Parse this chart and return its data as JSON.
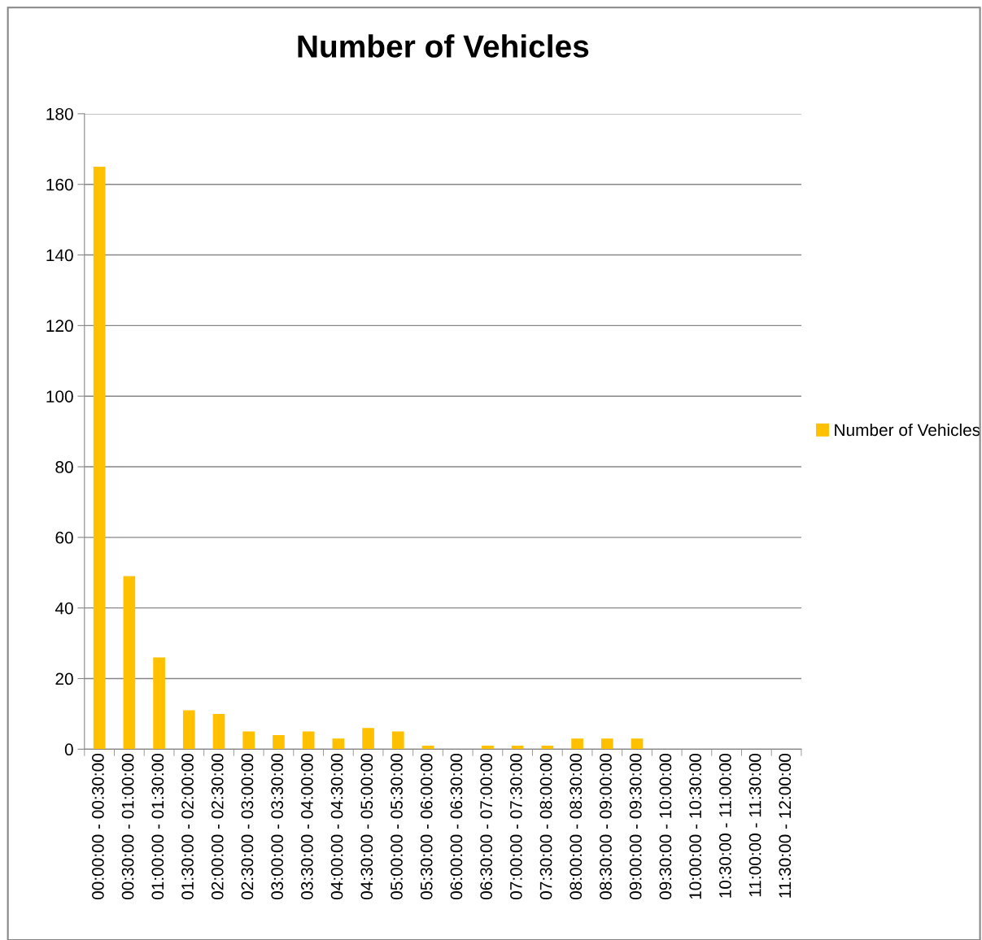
{
  "chart_data": {
    "type": "bar",
    "title": "Number of Vehicles",
    "categories": [
      "00:00:00 - 00:30:00",
      "00:30:00 - 01:00:00",
      "01:00:00 - 01:30:00",
      "01:30:00 - 02:00:00",
      "02:00:00 - 02:30:00",
      "02:30:00 - 03:00:00",
      "03:00:00 - 03:30:00",
      "03:30:00 - 04:00:00",
      "04:00:00 - 04:30:00",
      "04:30:00 - 05:00:00",
      "05:00:00 - 05:30:00",
      "05:30:00 - 06:00:00",
      "06:00:00 - 06:30:00",
      "06:30:00 - 07:00:00",
      "07:00:00 - 07:30:00",
      "07:30:00 - 08:00:00",
      "08:00:00 - 08:30:00",
      "08:30:00 - 09:00:00",
      "09:00:00 - 09:30:00",
      "09:30:00 - 10:00:00",
      "10:00:00 - 10:30:00",
      "10:30:00 - 11:00:00",
      "11:00:00 - 11:30:00",
      "11:30:00 - 12:00:00"
    ],
    "series": [
      {
        "name": "Number of Vehicles",
        "color": "#ffc000",
        "values": [
          165,
          49,
          26,
          11,
          10,
          5,
          4,
          5,
          3,
          6,
          5,
          1,
          0,
          1,
          1,
          1,
          3,
          3,
          3,
          0,
          0,
          0,
          0,
          0
        ]
      }
    ],
    "ylim": [
      0,
      180
    ],
    "yticks": [
      0,
      20,
      40,
      60,
      80,
      100,
      120,
      140,
      160,
      180
    ],
    "grid": "y",
    "legend": "right"
  }
}
